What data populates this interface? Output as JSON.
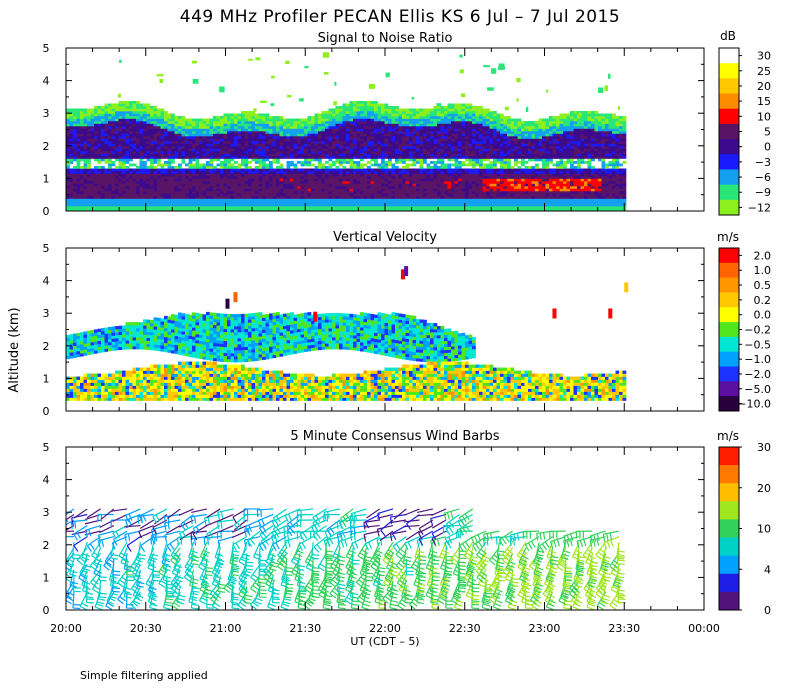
{
  "figure": {
    "title": "449 MHz Profiler PECAN Ellis KS  6 Jul –  7 Jul 2015",
    "footnote": "Simple filtering applied"
  },
  "chart_data": [
    {
      "type": "heatmap",
      "title": "Signal to Noise Ratio",
      "ylabel": "Altitude (km)",
      "ylim": [
        0,
        5
      ],
      "yticks": [
        "0",
        "1",
        "2",
        "3",
        "4",
        "5"
      ],
      "xlim_hours": [
        20,
        24
      ],
      "data_extent_hours": [
        20.0,
        23.5
      ],
      "colorbar": {
        "unit": "dB",
        "labels": [
          "30",
          "25",
          "20",
          "15",
          "10",
          "5",
          "0",
          "−3",
          "−6",
          "−9",
          "−12"
        ],
        "colors": [
          "#ffffff",
          "#ffff00",
          "#ffc800",
          "#ff8c00",
          "#ff0000",
          "#5a1466",
          "#3c0a8c",
          "#1a1aff",
          "#14a0f0",
          "#28e678",
          "#8cf01e"
        ]
      },
      "layers": [
        {
          "name": "strong near-surface layer",
          "altitude_km": [
            0.4,
            1.3
          ],
          "snr_db_range": [
            5,
            15
          ]
        },
        {
          "name": "elevated layer",
          "altitude_km": [
            1.6,
            2.9
          ],
          "snr_db_range": [
            0,
            5
          ]
        },
        {
          "name": "weak echoes aloft",
          "altitude_km": [
            3.0,
            4.9
          ],
          "snr_db_range": [
            -12,
            -6
          ]
        }
      ]
    },
    {
      "type": "heatmap",
      "title": "Vertical Velocity",
      "ylabel": "Altitude (km)",
      "ylim": [
        0,
        5
      ],
      "yticks": [
        "0",
        "1",
        "2",
        "3",
        "4",
        "5"
      ],
      "xlim_hours": [
        20,
        24
      ],
      "data_extent_hours": [
        20.0,
        23.5
      ],
      "colorbar": {
        "unit": "m/s",
        "labels": [
          "2.0",
          "1.0",
          "0.5",
          "0.2",
          "0.0",
          "−0.2",
          "−0.5",
          "−1.0",
          "−2.0",
          "−5.0",
          "−10.0"
        ],
        "colors": [
          "#ff0000",
          "#ff6400",
          "#ff9600",
          "#ffc800",
          "#ffff00",
          "#50e61e",
          "#00e6d2",
          "#00a0ff",
          "#1e32ff",
          "#5a0fa0",
          "#28003c"
        ]
      }
    },
    {
      "type": "scatter",
      "title": "5 Minute Consensus Wind Barbs",
      "ylabel": "Altitude (km)",
      "xlabel": "UT  (CDT – 5)",
      "ylim": [
        0,
        5
      ],
      "yticks": [
        "0",
        "1",
        "2",
        "3",
        "4",
        "5"
      ],
      "xlim_hours": [
        20,
        24
      ],
      "xticks": [
        "20:00",
        "20:30",
        "21:00",
        "21:30",
        "22:00",
        "22:30",
        "23:00",
        "23:30",
        "00:00"
      ],
      "colorbar": {
        "unit": "m/s",
        "labels": [
          "30",
          "20",
          "10",
          "4",
          "0"
        ],
        "colors": [
          "#ff1e00",
          "#ff7800",
          "#ffbe00",
          "#a0e61e",
          "#32d25a",
          "#00d2c8",
          "#00a0ff",
          "#1e1ee6",
          "#50147a"
        ]
      },
      "wind_speed_ms_range": [
        0,
        30
      ],
      "typical_speed_ms": [
        8,
        16
      ]
    }
  ]
}
